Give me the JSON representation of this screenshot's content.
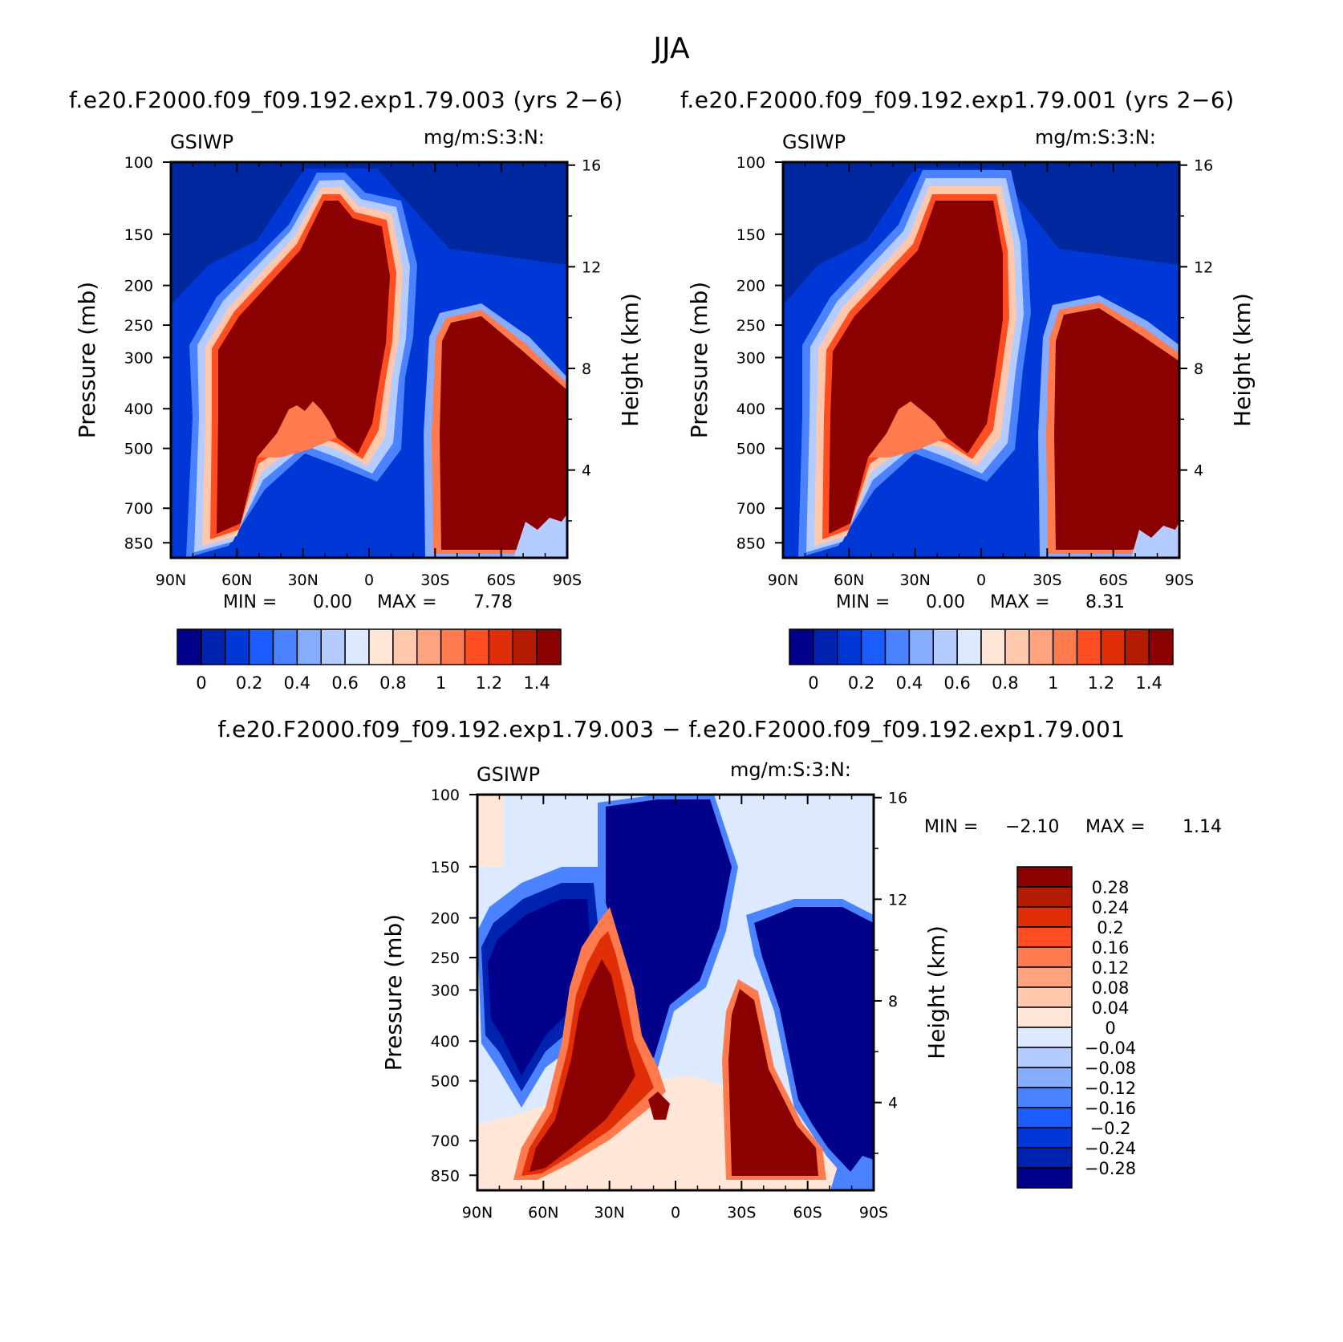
{
  "figure": {
    "title": "JJA",
    "diff_title": "f.e20.F2000.f09_f09.192.exp1.79.003 − f.e20.F2000.f09_f09.192.exp1.79.001"
  },
  "chart_data": [
    {
      "type": "heatmap",
      "panel": "top-left",
      "title": "f.e20.F2000.f09_f09.192.exp1.79.003 (yrs 2−6)",
      "left_label": "GSIWP",
      "units": "mg/m:S:3:N:",
      "ylabel": "Pressure (mb)",
      "ylabel_right": "Height (km)",
      "x_ticks": [
        "90N",
        "60N",
        "30N",
        "0",
        "30S",
        "60S",
        "90S"
      ],
      "y_ticks": [
        "100",
        "150",
        "200",
        "250",
        "300",
        "400",
        "500",
        "700",
        "850"
      ],
      "y2_ticks": [
        "16",
        "12",
        "8",
        "4"
      ],
      "min_label": "MIN =",
      "min_value": "0.00",
      "max_label": "MAX =",
      "max_value": "7.78",
      "colorbar_labels": [
        "0",
        "0.2",
        "0.4",
        "0.6",
        "0.8",
        "1",
        "1.2",
        "1.4"
      ],
      "colorbar_colors": [
        "#00008b",
        "#0022b0",
        "#0038d8",
        "#1a5cff",
        "#4a82ff",
        "#86acff",
        "#b4ccff",
        "#dce9ff",
        "#ffe6d6",
        "#ffc8ad",
        "#ffa37f",
        "#ff7a4d",
        "#ff4f22",
        "#e02e08",
        "#b31b02",
        "#8b0000"
      ]
    },
    {
      "type": "heatmap",
      "panel": "top-right",
      "title": "f.e20.F2000.f09_f09.192.exp1.79.001 (yrs 2−6)",
      "left_label": "GSIWP",
      "units": "mg/m:S:3:N:",
      "ylabel": "Pressure (mb)",
      "ylabel_right": "Height (km)",
      "x_ticks": [
        "90N",
        "60N",
        "30N",
        "0",
        "30S",
        "60S",
        "90S"
      ],
      "y_ticks": [
        "100",
        "150",
        "200",
        "250",
        "300",
        "400",
        "500",
        "700",
        "850"
      ],
      "y2_ticks": [
        "16",
        "12",
        "8",
        "4"
      ],
      "min_label": "MIN =",
      "min_value": "0.00",
      "max_label": "MAX =",
      "max_value": "8.31",
      "colorbar_labels": [
        "0",
        "0.2",
        "0.4",
        "0.6",
        "0.8",
        "1",
        "1.2",
        "1.4"
      ],
      "colorbar_colors": [
        "#00008b",
        "#0022b0",
        "#0038d8",
        "#1a5cff",
        "#4a82ff",
        "#86acff",
        "#b4ccff",
        "#dce9ff",
        "#ffe6d6",
        "#ffc8ad",
        "#ffa37f",
        "#ff7a4d",
        "#ff4f22",
        "#e02e08",
        "#b31b02",
        "#8b0000"
      ]
    },
    {
      "type": "heatmap",
      "panel": "bottom",
      "left_label": "GSIWP",
      "units": "mg/m:S:3:N:",
      "ylabel": "Pressure (mb)",
      "ylabel_right": "Height (km)",
      "x_ticks": [
        "90N",
        "60N",
        "30N",
        "0",
        "30S",
        "60S",
        "90S"
      ],
      "y_ticks": [
        "100",
        "150",
        "200",
        "250",
        "300",
        "400",
        "500",
        "700",
        "850"
      ],
      "y2_ticks": [
        "16",
        "12",
        "8",
        "4"
      ],
      "min_label": "MIN =",
      "min_value": "−2.10",
      "max_label": "MAX =",
      "max_value": "1.14",
      "colorbar_labels": [
        "0.28",
        "0.24",
        "0.2",
        "0.16",
        "0.12",
        "0.08",
        "0.04",
        "0",
        "−0.04",
        "−0.08",
        "−0.12",
        "−0.16",
        "−0.2",
        "−0.24",
        "−0.28"
      ],
      "colorbar_colors": [
        "#8b0000",
        "#b31b02",
        "#e02e08",
        "#ff4f22",
        "#ff7a4d",
        "#ffa37f",
        "#ffc8ad",
        "#ffe6d6",
        "#dce9ff",
        "#b4ccff",
        "#86acff",
        "#4a82ff",
        "#1a5cff",
        "#0038d8",
        "#0022b0",
        "#00008b"
      ]
    }
  ],
  "palette": {
    "deep_blue": "#00008b",
    "mid_blue": "#0033cc",
    "light_blue": "#dce9ff",
    "cream": "#ffe6d6",
    "orange_red": "#e02e08",
    "dark_red": "#8b0000"
  }
}
